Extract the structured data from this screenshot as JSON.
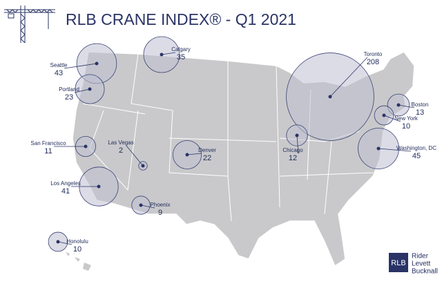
{
  "title": "RLB CRANE INDEX® - Q1 2021",
  "cities": [
    {
      "name": "Seattle",
      "cranes": 43
    },
    {
      "name": "Calgary",
      "cranes": 35
    },
    {
      "name": "Portland",
      "cranes": 23
    },
    {
      "name": "Toronto",
      "cranes": 208
    },
    {
      "name": "Boston",
      "cranes": 13
    },
    {
      "name": "New York",
      "cranes": 10
    },
    {
      "name": "Washington, DC",
      "cranes": 45
    },
    {
      "name": "Chicago",
      "cranes": 12
    },
    {
      "name": "Denver",
      "cranes": 22
    },
    {
      "name": "Las Vegas",
      "cranes": 2
    },
    {
      "name": "San Francisco",
      "cranes": 11
    },
    {
      "name": "Los Angeles",
      "cranes": 41
    },
    {
      "name": "Phoenix",
      "cranes": 9
    },
    {
      "name": "Honolulu",
      "cranes": 10
    }
  ],
  "logo": {
    "abbr": "RLB",
    "lines": [
      "Rider",
      "Levett",
      "Bucknall"
    ]
  }
}
